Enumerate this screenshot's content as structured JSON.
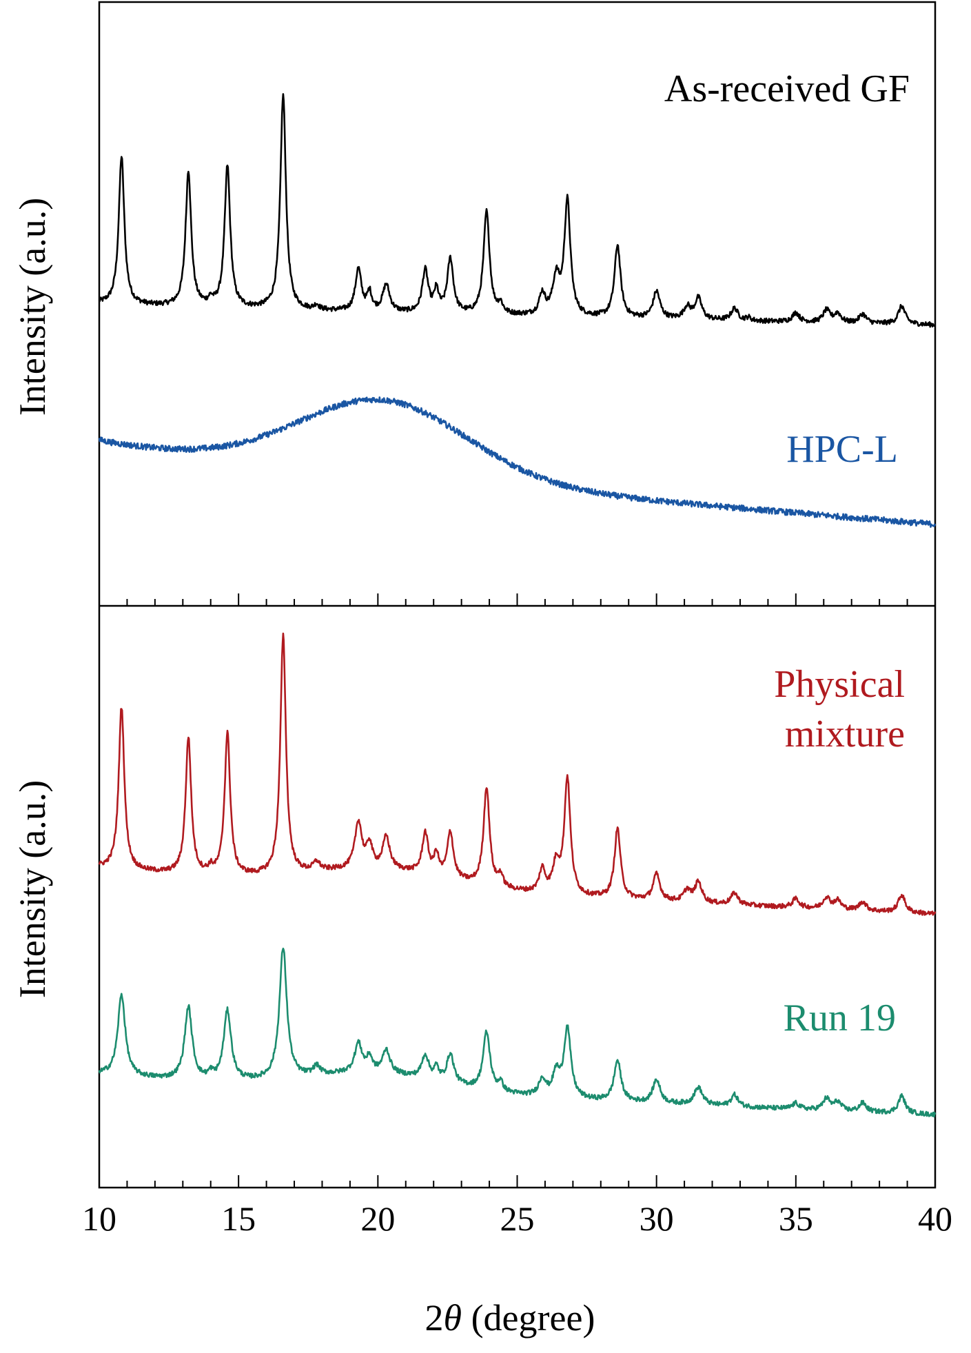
{
  "chart_data": {
    "type": "line",
    "xlabel_prefix": "2",
    "xlabel_symbol": "θ",
    "xlabel_suffix": " (degree)",
    "xlim": [
      10,
      40
    ],
    "xticks": [
      10,
      15,
      20,
      25,
      30,
      35,
      40
    ],
    "x_minor_step": 1,
    "panels": [
      {
        "id": "top",
        "ylabel": "Intensity (a.u.)",
        "yticks_shown": false,
        "series": [
          {
            "name": "As-received GF",
            "color": "#000000",
            "baseline_start": 0.5,
            "baseline_end": 0.465,
            "noise": 0.004,
            "broad": [],
            "peaks": [
              [
                10.8,
                0.245,
                0.12
              ],
              [
                13.2,
                0.225,
                0.12
              ],
              [
                14.0,
                0.01,
                0.1
              ],
              [
                14.6,
                0.235,
                0.12
              ],
              [
                16.6,
                0.355,
                0.12
              ],
              [
                17.8,
                0.008,
                0.1
              ],
              [
                19.3,
                0.07,
                0.13
              ],
              [
                19.7,
                0.03,
                0.1
              ],
              [
                20.3,
                0.045,
                0.15
              ],
              [
                21.7,
                0.07,
                0.13
              ],
              [
                22.1,
                0.035,
                0.1
              ],
              [
                22.6,
                0.09,
                0.13
              ],
              [
                23.9,
                0.17,
                0.13
              ],
              [
                24.4,
                0.015,
                0.1
              ],
              [
                25.9,
                0.035,
                0.13
              ],
              [
                26.4,
                0.06,
                0.15
              ],
              [
                26.8,
                0.19,
                0.13
              ],
              [
                28.6,
                0.12,
                0.13
              ],
              [
                30.0,
                0.045,
                0.15
              ],
              [
                31.1,
                0.02,
                0.15
              ],
              [
                31.5,
                0.035,
                0.15
              ],
              [
                32.8,
                0.02,
                0.15
              ],
              [
                33.3,
                0.005,
                0.1
              ],
              [
                35.0,
                0.015,
                0.15
              ],
              [
                36.1,
                0.02,
                0.15
              ],
              [
                36.5,
                0.015,
                0.15
              ],
              [
                37.4,
                0.015,
                0.15
              ],
              [
                38.8,
                0.03,
                0.15
              ]
            ]
          },
          {
            "name": "HPC-L",
            "color": "#1a56a3",
            "baseline_start": 0.275,
            "baseline_end": 0.135,
            "noise": 0.005,
            "broad": [
              [
                20.2,
                0.125,
                3.0
              ]
            ],
            "peaks": []
          }
        ]
      },
      {
        "id": "bottom",
        "ylabel": "Intensity (a.u.)",
        "yticks_shown": false,
        "series": [
          {
            "name_line1": "Physical",
            "name_line2": "mixture",
            "color": "#b01a1f",
            "baseline_start": 0.55,
            "baseline_end": 0.47,
            "noise": 0.004,
            "broad": [
              [
                20.2,
                0.03,
                2.5
              ]
            ],
            "peaks": [
              [
                10.8,
                0.28,
                0.12
              ],
              [
                13.2,
                0.235,
                0.12
              ],
              [
                14.0,
                0.01,
                0.1
              ],
              [
                14.6,
                0.245,
                0.12
              ],
              [
                16.6,
                0.41,
                0.12
              ],
              [
                17.8,
                0.015,
                0.15
              ],
              [
                19.3,
                0.08,
                0.15
              ],
              [
                19.7,
                0.04,
                0.12
              ],
              [
                20.3,
                0.055,
                0.15
              ],
              [
                21.7,
                0.07,
                0.13
              ],
              [
                22.1,
                0.035,
                0.1
              ],
              [
                22.6,
                0.08,
                0.13
              ],
              [
                23.9,
                0.17,
                0.13
              ],
              [
                24.4,
                0.02,
                0.1
              ],
              [
                25.9,
                0.04,
                0.13
              ],
              [
                26.4,
                0.05,
                0.15
              ],
              [
                26.8,
                0.2,
                0.13
              ],
              [
                28.6,
                0.12,
                0.13
              ],
              [
                30.0,
                0.045,
                0.15
              ],
              [
                31.1,
                0.02,
                0.15
              ],
              [
                31.5,
                0.035,
                0.15
              ],
              [
                32.8,
                0.02,
                0.15
              ],
              [
                35.0,
                0.015,
                0.15
              ],
              [
                36.1,
                0.02,
                0.15
              ],
              [
                36.5,
                0.015,
                0.15
              ],
              [
                37.4,
                0.015,
                0.15
              ],
              [
                38.8,
                0.03,
                0.15
              ]
            ]
          },
          {
            "name": "Run 19",
            "color": "#1c8c6e",
            "baseline_start": 0.195,
            "baseline_end": 0.125,
            "noise": 0.004,
            "broad": [
              [
                20.0,
                0.03,
                2.5
              ]
            ],
            "peaks": [
              [
                10.8,
                0.14,
                0.16
              ],
              [
                13.2,
                0.125,
                0.16
              ],
              [
                14.0,
                0.01,
                0.1
              ],
              [
                14.6,
                0.12,
                0.16
              ],
              [
                16.6,
                0.225,
                0.16
              ],
              [
                17.8,
                0.015,
                0.15
              ],
              [
                19.3,
                0.05,
                0.16
              ],
              [
                19.7,
                0.025,
                0.12
              ],
              [
                20.3,
                0.04,
                0.16
              ],
              [
                21.7,
                0.04,
                0.15
              ],
              [
                22.1,
                0.02,
                0.1
              ],
              [
                22.6,
                0.05,
                0.15
              ],
              [
                23.9,
                0.1,
                0.15
              ],
              [
                24.4,
                0.015,
                0.1
              ],
              [
                25.9,
                0.03,
                0.15
              ],
              [
                26.4,
                0.04,
                0.15
              ],
              [
                26.8,
                0.12,
                0.15
              ],
              [
                28.6,
                0.07,
                0.15
              ],
              [
                30.0,
                0.04,
                0.16
              ],
              [
                31.5,
                0.03,
                0.18
              ],
              [
                32.8,
                0.02,
                0.15
              ],
              [
                35.0,
                0.01,
                0.15
              ],
              [
                36.1,
                0.02,
                0.15
              ],
              [
                36.5,
                0.015,
                0.15
              ],
              [
                37.4,
                0.015,
                0.15
              ],
              [
                38.8,
                0.03,
                0.15
              ]
            ]
          }
        ]
      }
    ]
  }
}
